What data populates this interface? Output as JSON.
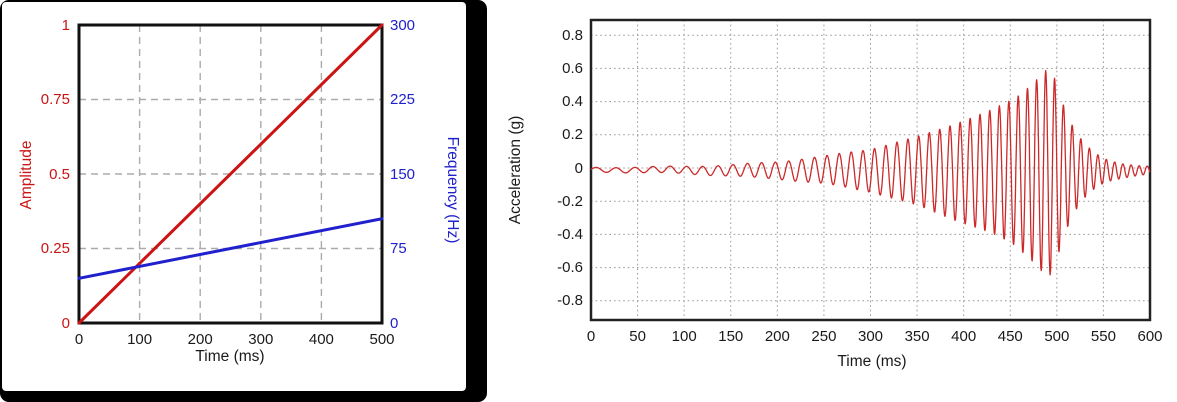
{
  "page": {
    "background": "#ffffff",
    "left_figure_frame_color": "#000000"
  },
  "chart_data": [
    {
      "id": "input-ramps",
      "type": "line",
      "title": "",
      "xlabel": "Time (ms)",
      "ylabel_left": "Amplitude",
      "ylabel_right": "Frequency (Hz)",
      "x_range": [
        0,
        500
      ],
      "x_ticks": {
        "values": [
          0,
          100,
          200,
          300,
          400,
          500
        ],
        "labels": [
          "0",
          "100",
          "200",
          "300",
          "400",
          "500"
        ]
      },
      "y_left_range": [
        0,
        1
      ],
      "y_left_ticks": {
        "values": [
          0,
          0.25,
          0.5,
          0.75,
          1
        ],
        "labels": [
          "0",
          "0.25",
          "0.5",
          "0.75",
          "1"
        ]
      },
      "y_right_range": [
        0,
        300
      ],
      "y_right_ticks": {
        "values": [
          0,
          75,
          150,
          225,
          300
        ],
        "labels": [
          "0",
          "75",
          "150",
          "225",
          "300"
        ]
      },
      "grid": {
        "style": "dashed",
        "color": "#ababab"
      },
      "frame_color": "#111111",
      "axis_colors": {
        "left": "#cc1414",
        "right": "#2020cc",
        "x": "#1a1a1a"
      },
      "series": [
        {
          "name": "amplitude-ramp",
          "axis": "left",
          "color": "#cc1414",
          "points": [
            [
              0,
              0
            ],
            [
              500,
              1
            ]
          ]
        },
        {
          "name": "frequency-ramp",
          "axis": "right",
          "color": "#2020cc",
          "points": [
            [
              0,
              45
            ],
            [
              500,
              105
            ]
          ]
        }
      ]
    },
    {
      "id": "acceleration-response",
      "type": "line",
      "title": "",
      "xlabel": "Time (ms)",
      "ylabel": "Acceleration (g)",
      "x_range": [
        0,
        600
      ],
      "x_ticks": {
        "values": [
          0,
          50,
          100,
          150,
          200,
          250,
          300,
          350,
          400,
          450,
          500,
          550,
          600
        ],
        "labels": [
          "0",
          "50",
          "100",
          "150",
          "200",
          "250",
          "300",
          "350",
          "400",
          "450",
          "500",
          "550",
          "600"
        ]
      },
      "y_range": [
        -0.916,
        0.892
      ],
      "y_ticks": {
        "values": [
          0.8,
          0.6,
          0.4,
          0.2,
          0,
          -0.2,
          -0.4,
          -0.6,
          -0.8
        ],
        "labels": [
          "0.8",
          "0.6",
          "0.4",
          "0.2",
          "0",
          "-0.2",
          "-0.4",
          "-0.6",
          "-0.8"
        ]
      },
      "grid": {
        "style": "dotted",
        "color": "#9a9a9a"
      },
      "frame_color": "#222222",
      "axis_colors": {
        "y": "#1a1a1a",
        "x": "#1a1a1a"
      },
      "signal": {
        "name": "swept-sine-response",
        "color": "#cc2a2a",
        "freq_hz_start": 45,
        "freq_hz_at_500ms": 105,
        "peak_g": 0.61,
        "peak_time_ms": 490,
        "baseline_offset_g": -0.012,
        "negative_gain": 1.06,
        "noise_ripple_g": 0.003,
        "envelope_keypoints_ms_g": [
          [
            0,
            0.013
          ],
          [
            50,
            0.016
          ],
          [
            100,
            0.021
          ],
          [
            150,
            0.032
          ],
          [
            200,
            0.05
          ],
          [
            250,
            0.08
          ],
          [
            300,
            0.125
          ],
          [
            350,
            0.2
          ],
          [
            400,
            0.3
          ],
          [
            430,
            0.36
          ],
          [
            455,
            0.43
          ],
          [
            470,
            0.5
          ],
          [
            483,
            0.57
          ],
          [
            490,
            0.61
          ],
          [
            496,
            0.58
          ],
          [
            505,
            0.42
          ],
          [
            515,
            0.28
          ],
          [
            525,
            0.19
          ],
          [
            535,
            0.13
          ],
          [
            545,
            0.088
          ],
          [
            555,
            0.062
          ],
          [
            570,
            0.042
          ],
          [
            585,
            0.03
          ],
          [
            600,
            0.022
          ]
        ]
      }
    }
  ]
}
